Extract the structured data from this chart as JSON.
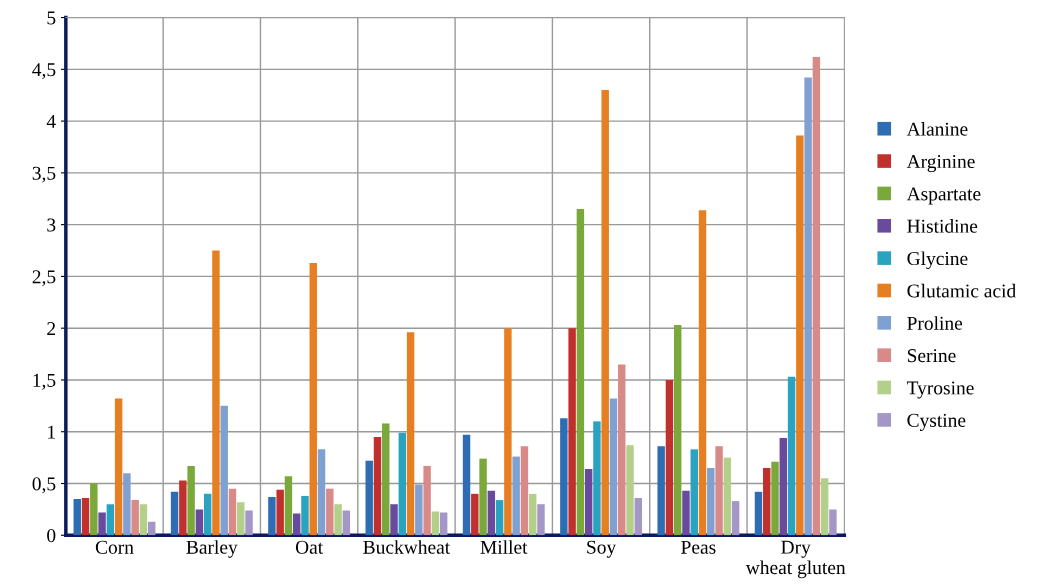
{
  "chart_data": {
    "type": "bar",
    "categories": [
      "Corn",
      "Barley",
      "Oat",
      "Buckwheat",
      "Millet",
      "Soy",
      "Peas",
      "Dry\nwheat gluten"
    ],
    "series": [
      {
        "name": "Alanine",
        "color": "#2e6db4",
        "values": [
          0.35,
          0.42,
          0.37,
          0.72,
          0.97,
          1.13,
          0.86,
          0.42
        ]
      },
      {
        "name": "Arginine",
        "color": "#c0302c",
        "values": [
          0.36,
          0.53,
          0.44,
          0.95,
          0.4,
          2.0,
          1.5,
          0.65
        ]
      },
      {
        "name": "Aspartate",
        "color": "#7aa83a",
        "values": [
          0.5,
          0.67,
          0.57,
          1.08,
          0.74,
          3.15,
          2.03,
          0.71
        ]
      },
      {
        "name": "Histidine",
        "color": "#6a4a9c",
        "values": [
          0.22,
          0.25,
          0.21,
          0.3,
          0.43,
          0.64,
          0.43,
          0.94
        ]
      },
      {
        "name": "Glycine",
        "color": "#2aa3c0",
        "values": [
          0.3,
          0.4,
          0.38,
          0.99,
          0.34,
          1.1,
          0.83,
          1.53
        ]
      },
      {
        "name": "Glutamic acid",
        "color": "#e67e22",
        "values": [
          1.32,
          2.75,
          2.63,
          1.96,
          2.0,
          4.3,
          3.14,
          3.86
        ]
      },
      {
        "name": "Proline",
        "color": "#7fa0d0",
        "values": [
          0.6,
          1.25,
          0.83,
          0.49,
          0.76,
          1.32,
          0.65,
          4.42
        ]
      },
      {
        "name": "Serine",
        "color": "#d88a88",
        "values": [
          0.34,
          0.45,
          0.45,
          0.67,
          0.86,
          1.65,
          0.86,
          4.62
        ]
      },
      {
        "name": "Tyrosine",
        "color": "#b3cf8a",
        "values": [
          0.3,
          0.32,
          0.3,
          0.23,
          0.4,
          0.87,
          0.75,
          0.55
        ]
      },
      {
        "name": "Cystine",
        "color": "#a596c8",
        "values": [
          0.13,
          0.24,
          0.24,
          0.22,
          0.3,
          0.36,
          0.33,
          0.25
        ]
      }
    ],
    "ylim": [
      0,
      5
    ],
    "yticks": [
      0,
      {
        "value": 0.5,
        "label": "0,5"
      },
      1,
      {
        "value": 1.5,
        "label": "1,5"
      },
      2,
      {
        "value": 2.5,
        "label": "2,5"
      },
      3,
      {
        "value": 3.5,
        "label": "3,5"
      },
      4,
      {
        "value": 4.5,
        "label": "4,5"
      },
      5
    ],
    "grid": true,
    "legend": "right"
  }
}
